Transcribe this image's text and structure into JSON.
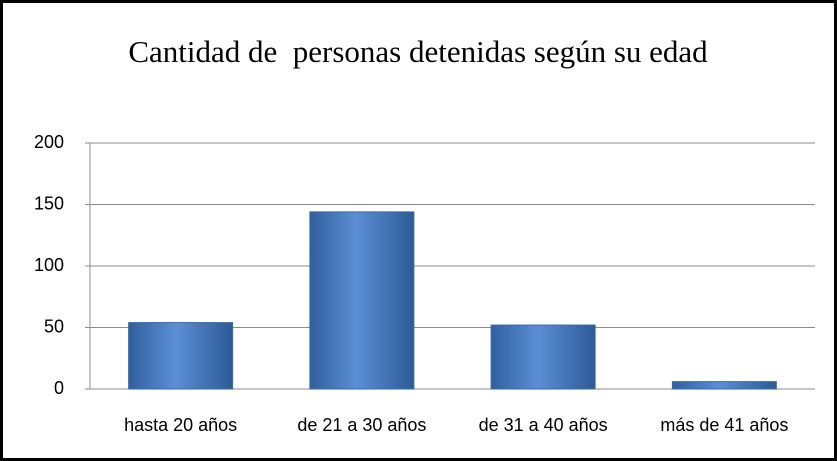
{
  "chart_data": {
    "type": "bar",
    "title": "Cantidad de  personas detenidas según su edad",
    "categories": [
      "hasta 20 años",
      "de 21 a 30 años",
      "de 31 a 40 años",
      "más de 41 años"
    ],
    "values": [
      54,
      144,
      52,
      6
    ],
    "color": "#4f81bd",
    "ylim": [
      0,
      200
    ],
    "yticks": [
      0,
      50,
      100,
      150,
      200
    ],
    "grid": true
  }
}
